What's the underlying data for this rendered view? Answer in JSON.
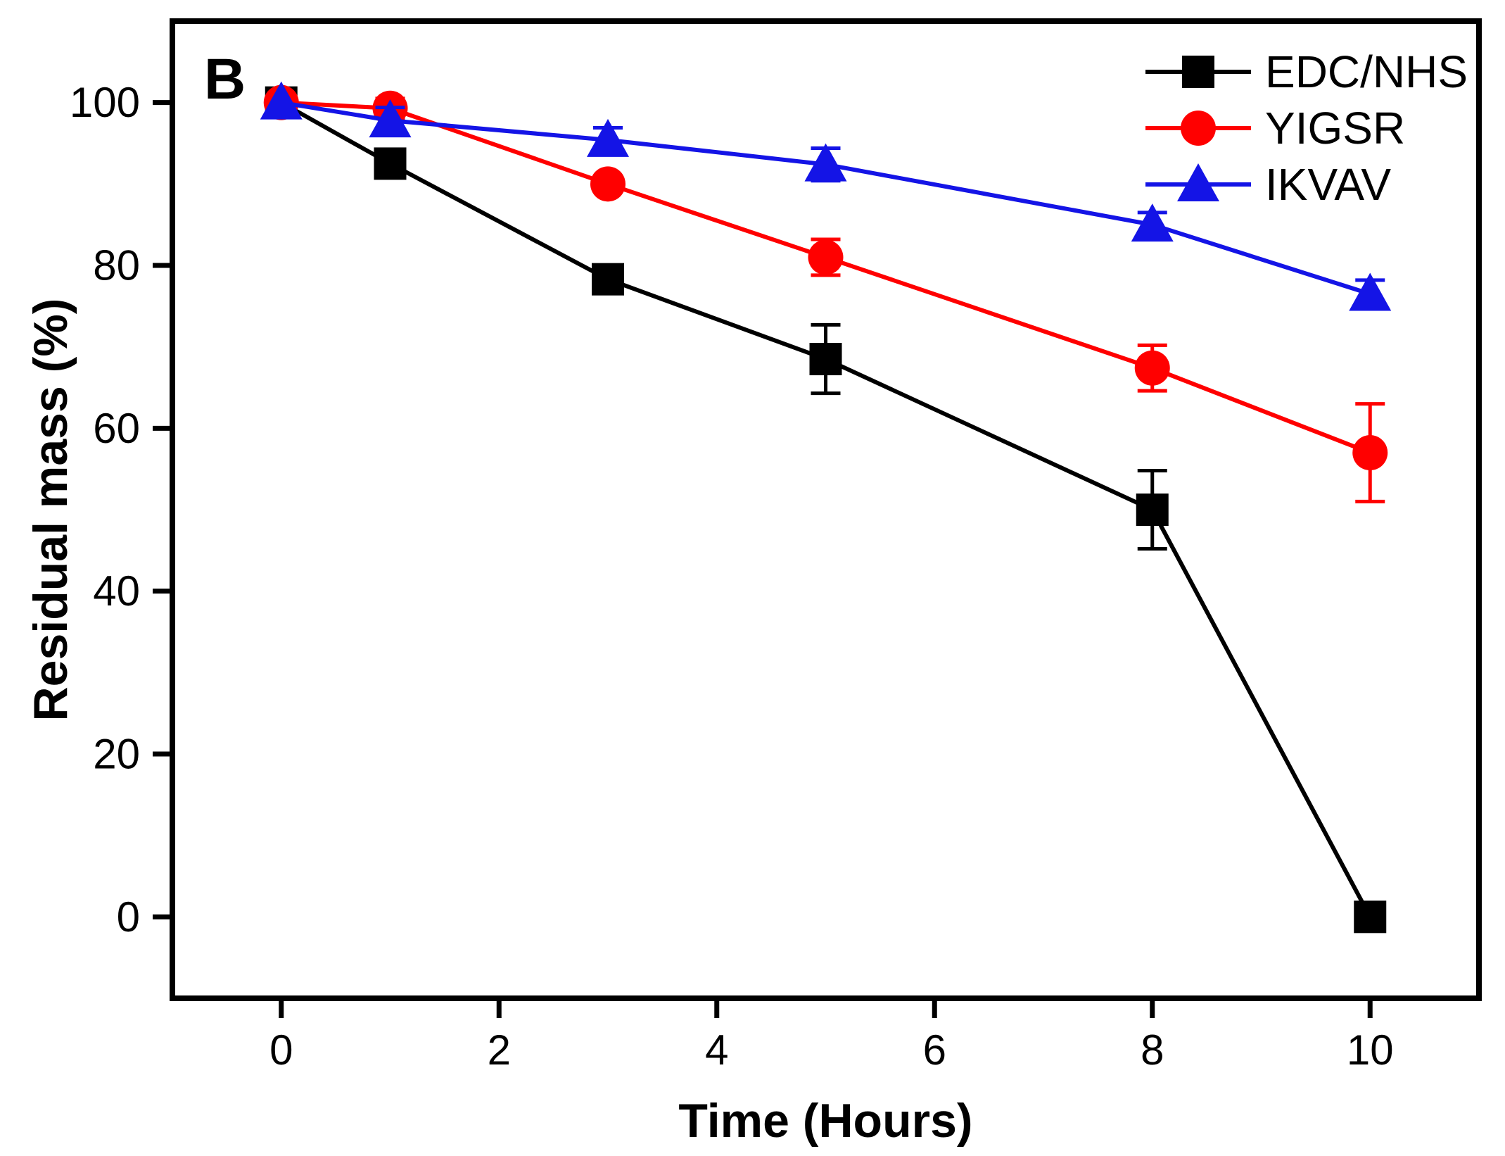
{
  "figure": {
    "panel_label": "B",
    "background": "#FFFFFF",
    "text_color": "#000000"
  },
  "chart_data": {
    "type": "line",
    "panel_label": "B",
    "xlabel": "Time (Hours)",
    "ylabel": "Residual mass (%)",
    "xlim": [
      -1,
      11
    ],
    "ylim": [
      -10,
      110
    ],
    "xticks": [
      0,
      2,
      4,
      6,
      8,
      10
    ],
    "yticks": [
      0,
      20,
      40,
      60,
      80,
      100
    ],
    "grid": false,
    "legend_position": "top-right",
    "x": [
      0,
      1,
      3,
      5,
      8,
      10
    ],
    "series": [
      {
        "name": "EDC/NHS",
        "color": "#000000",
        "marker": "square",
        "values": [
          100,
          92.5,
          78.3,
          68.5,
          50,
          0
        ],
        "errors": [
          0,
          0,
          1.7,
          4.2,
          4.8,
          0
        ]
      },
      {
        "name": "YIGSR",
        "color": "#FF0000",
        "marker": "circle",
        "values": [
          100,
          99.3,
          90,
          81,
          67.4,
          57
        ],
        "errors": [
          0,
          1.2,
          0,
          2.2,
          2.8,
          6
        ]
      },
      {
        "name": "IKVAV",
        "color": "#1414E6",
        "marker": "triangle",
        "values": [
          100,
          97.8,
          95.4,
          92.4,
          85,
          76.5
        ],
        "errors": [
          0,
          1.6,
          1.5,
          2.0,
          1.5,
          1.7
        ]
      }
    ]
  }
}
